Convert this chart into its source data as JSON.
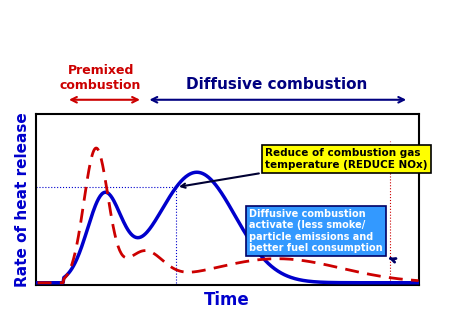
{
  "title_premixed": "Premixed\ncombustion",
  "title_diffusive": "Diffusive combustion",
  "ylabel": "Rate of heat release",
  "xlabel": "Time",
  "bg_color": "#ffffff",
  "plot_bg_color": "#ffffff",
  "blue_color": "#0000cc",
  "red_color": "#cc0000",
  "nox_box_color": "#ffff00",
  "nox_box_edge": "#000000",
  "nox_text": "Reduce of combustion gas\ntemperature (REDUCE NOx)",
  "diff_box_color": "#3399ff",
  "diff_box_edge": "#000066",
  "diff_text": "Diffusive combustion\nactivate (less smoke/\nparticle emissions and\nbetter fuel consumption"
}
